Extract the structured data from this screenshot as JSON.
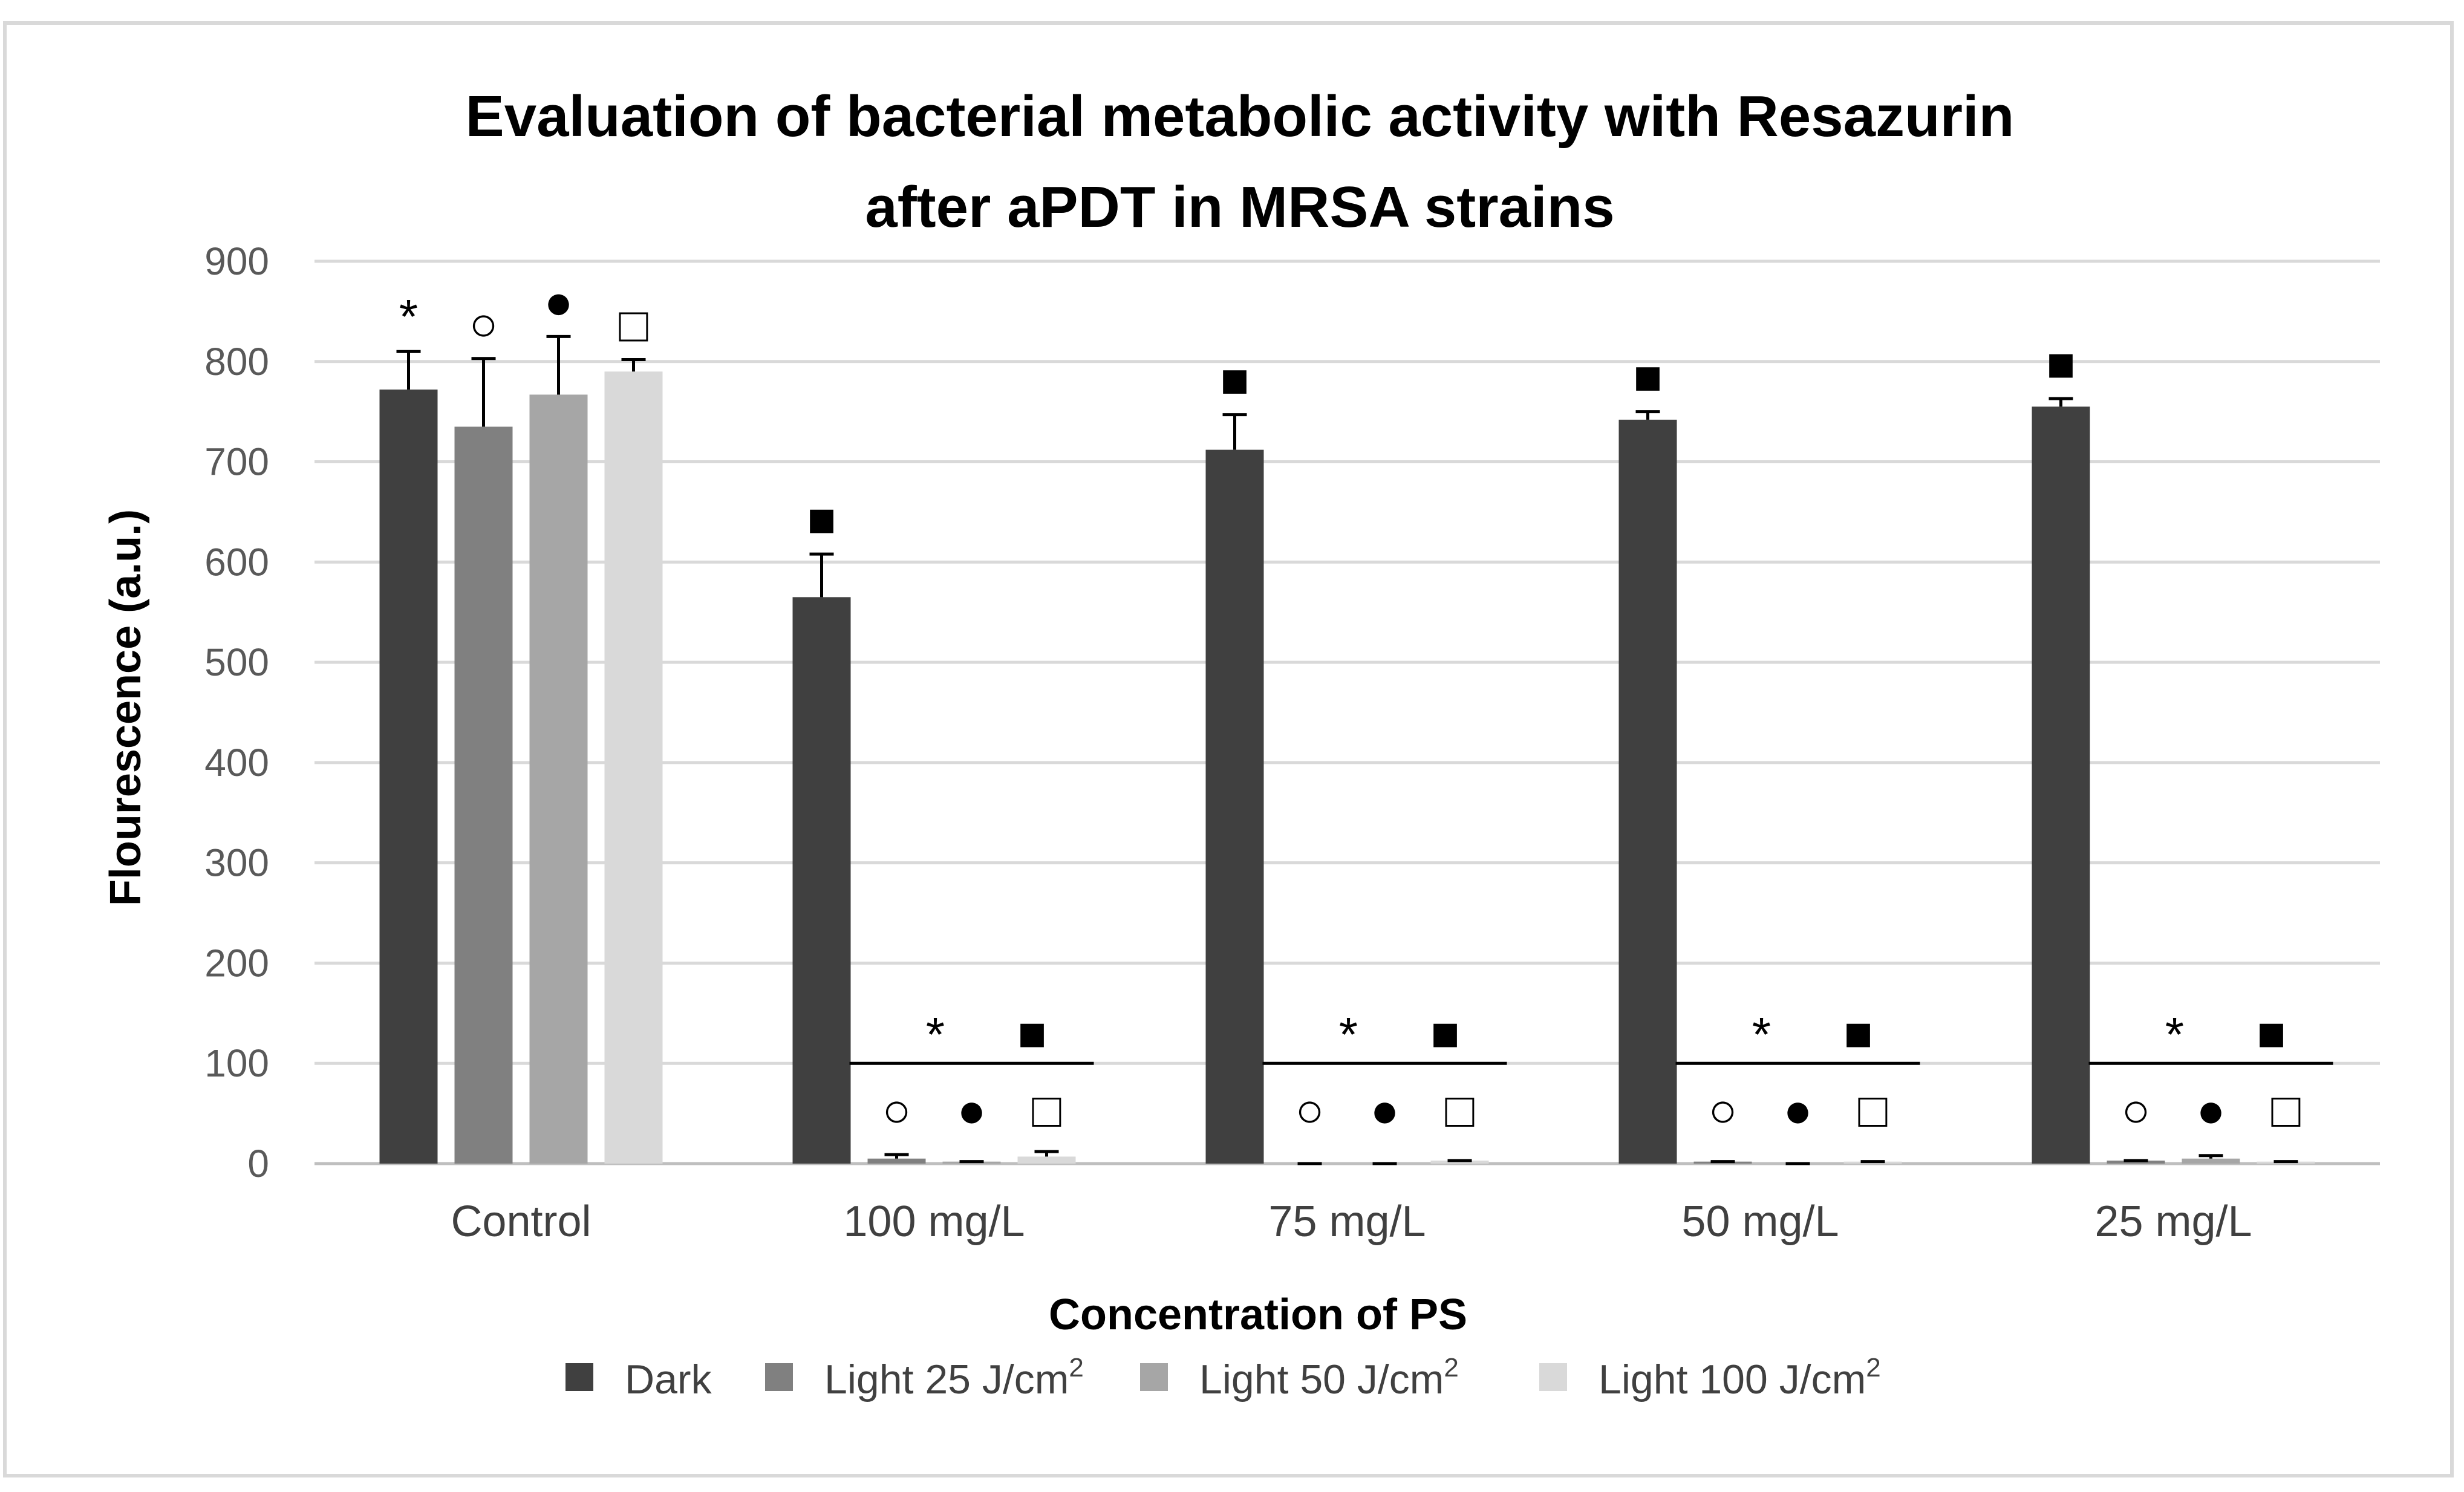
{
  "chart_data": {
    "type": "bar",
    "title": "Evaluation of bacterial metabolic activity with Resazurin after aPDT in  MRSA strains",
    "title_lines": [
      "Evaluation of bacterial metabolic activity with Resazurin",
      "after aPDT in  MRSA strains"
    ],
    "xlabel": "Concentration of PS",
    "ylabel": "Flourescence (a.u.)",
    "ylim": [
      0,
      900
    ],
    "yticks": [
      0,
      100,
      200,
      300,
      400,
      500,
      600,
      700,
      800,
      900
    ],
    "grid": true,
    "legend_position": "bottom",
    "categories": [
      "Control",
      "100 mg/L",
      "75 mg/L",
      "50 mg/L",
      "25 mg/L"
    ],
    "series": [
      {
        "name": "Dark",
        "superscript": "",
        "color": "#404040",
        "values": [
          772,
          565,
          712,
          742,
          755
        ],
        "errors": [
          38,
          43,
          35,
          8,
          8
        ]
      },
      {
        "name": "Light 25 J/cm",
        "superscript": "2",
        "color": "#808080",
        "values": [
          735,
          5,
          0,
          2,
          3
        ],
        "errors": [
          68,
          4,
          0,
          0,
          0
        ]
      },
      {
        "name": "Light 50 J/cm",
        "superscript": "2",
        "color": "#a6a6a6",
        "values": [
          767,
          2,
          0,
          0,
          5
        ],
        "errors": [
          58,
          0,
          0,
          0,
          3
        ]
      },
      {
        "name": "Light 100 J/cm",
        "superscript": "2",
        "color": "#d9d9d9",
        "values": [
          790,
          7,
          3,
          2,
          2
        ],
        "errors": [
          12,
          5,
          0,
          0,
          0
        ]
      }
    ],
    "significance_markers": {
      "control": [
        "*",
        "○",
        "●",
        "□"
      ],
      "dark_treated": "■",
      "light_group_top": [
        "*",
        "■"
      ],
      "light_group_bottom": [
        "○",
        "●",
        "□"
      ]
    }
  }
}
